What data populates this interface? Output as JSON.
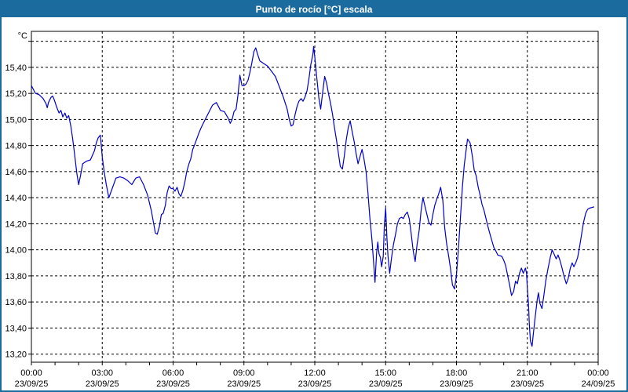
{
  "window": {
    "title": "Punto de rocío [°C] escala"
  },
  "colors": {
    "titlebar_bg": "#1C6B9F",
    "window_border": "#1B6C9E",
    "series_line": "#0000CC",
    "grid": "#000000",
    "frame": "#000000",
    "label_text": "#000000"
  },
  "chart_data": {
    "type": "line",
    "title": "Punto de rocío [°C] escala",
    "ylabel": "°C",
    "xlabel": "",
    "grid": true,
    "legend": "none",
    "xlim_hours": [
      0,
      24
    ],
    "ylim": [
      13.138,
      15.676
    ],
    "y_gridlines": [
      {
        "value": 15.6,
        "label": ""
      },
      {
        "value": 15.4,
        "label": "15,40"
      },
      {
        "value": 15.2,
        "label": "15,20"
      },
      {
        "value": 15.0,
        "label": "15,00"
      },
      {
        "value": 14.8,
        "label": "14,80"
      },
      {
        "value": 14.6,
        "label": "14,60"
      },
      {
        "value": 14.4,
        "label": "14,40"
      },
      {
        "value": 14.2,
        "label": "14,20"
      },
      {
        "value": 14.0,
        "label": "14,00"
      },
      {
        "value": 13.8,
        "label": "13,80"
      },
      {
        "value": 13.6,
        "label": "13,60"
      },
      {
        "value": 13.4,
        "label": "13,40"
      },
      {
        "value": 13.2,
        "label": "13,20"
      }
    ],
    "x_minor_tick_every_hours": 1,
    "x_ticks": [
      {
        "hour": 0,
        "time": "00:00",
        "date": "23/09/25"
      },
      {
        "hour": 3,
        "time": "03:00",
        "date": "23/09/25"
      },
      {
        "hour": 6,
        "time": "06:00",
        "date": "23/09/25"
      },
      {
        "hour": 9,
        "time": "09:00",
        "date": "23/09/25"
      },
      {
        "hour": 12,
        "time": "12:00",
        "date": "23/09/25"
      },
      {
        "hour": 15,
        "time": "15:00",
        "date": "23/09/25"
      },
      {
        "hour": 18,
        "time": "18:00",
        "date": "23/09/25"
      },
      {
        "hour": 21,
        "time": "21:00",
        "date": "23/09/25"
      },
      {
        "hour": 24,
        "time": "00:00",
        "date": "24/09/25"
      }
    ],
    "series": [
      {
        "name": "Punto de rocío [°C]",
        "points": [
          [
            0,
            15.26
          ],
          [
            0.17,
            15.2
          ],
          [
            0.33,
            15.19
          ],
          [
            0.5,
            15.16
          ],
          [
            0.62,
            15.12
          ],
          [
            0.67,
            15.09
          ],
          [
            0.72,
            15.13
          ],
          [
            0.83,
            15.17
          ],
          [
            0.9,
            15.18
          ],
          [
            0.97,
            15.15
          ],
          [
            1.08,
            15.09
          ],
          [
            1.17,
            15.05
          ],
          [
            1.25,
            15.07
          ],
          [
            1.33,
            15.02
          ],
          [
            1.42,
            15.05
          ],
          [
            1.5,
            15.01
          ],
          [
            1.58,
            15.03
          ],
          [
            1.67,
            14.95
          ],
          [
            1.75,
            14.85
          ],
          [
            1.83,
            14.73
          ],
          [
            1.92,
            14.59
          ],
          [
            2,
            14.5
          ],
          [
            2.08,
            14.57
          ],
          [
            2.17,
            14.66
          ],
          [
            2.33,
            14.68
          ],
          [
            2.5,
            14.69
          ],
          [
            2.67,
            14.76
          ],
          [
            2.75,
            14.82
          ],
          [
            2.83,
            14.86
          ],
          [
            2.92,
            14.88
          ],
          [
            3,
            14.71
          ],
          [
            3.08,
            14.6
          ],
          [
            3.17,
            14.5
          ],
          [
            3.28,
            14.4
          ],
          [
            3.42,
            14.47
          ],
          [
            3.58,
            14.55
          ],
          [
            3.75,
            14.56
          ],
          [
            3.92,
            14.55
          ],
          [
            4.08,
            14.53
          ],
          [
            4.25,
            14.5
          ],
          [
            4.42,
            14.55
          ],
          [
            4.58,
            14.56
          ],
          [
            4.75,
            14.5
          ],
          [
            4.92,
            14.42
          ],
          [
            5,
            14.36
          ],
          [
            5.08,
            14.3
          ],
          [
            5.17,
            14.21
          ],
          [
            5.25,
            14.13
          ],
          [
            5.33,
            14.12
          ],
          [
            5.42,
            14.18
          ],
          [
            5.5,
            14.27
          ],
          [
            5.58,
            14.28
          ],
          [
            5.67,
            14.34
          ],
          [
            5.75,
            14.44
          ],
          [
            5.83,
            14.49
          ],
          [
            5.92,
            14.47
          ],
          [
            6,
            14.47
          ],
          [
            6.08,
            14.45
          ],
          [
            6.17,
            14.48
          ],
          [
            6.25,
            14.43
          ],
          [
            6.33,
            14.41
          ],
          [
            6.42,
            14.46
          ],
          [
            6.5,
            14.52
          ],
          [
            6.58,
            14.6
          ],
          [
            6.67,
            14.66
          ],
          [
            6.75,
            14.7
          ],
          [
            6.83,
            14.77
          ],
          [
            6.92,
            14.81
          ],
          [
            7,
            14.85
          ],
          [
            7.08,
            14.89
          ],
          [
            7.17,
            14.93
          ],
          [
            7.33,
            14.99
          ],
          [
            7.5,
            15.05
          ],
          [
            7.67,
            15.11
          ],
          [
            7.83,
            15.13
          ],
          [
            7.92,
            15.1
          ],
          [
            8,
            15.07
          ],
          [
            8.17,
            15.06
          ],
          [
            8.33,
            15.01
          ],
          [
            8.42,
            14.97
          ],
          [
            8.5,
            15
          ],
          [
            8.58,
            15.06
          ],
          [
            8.67,
            15.08
          ],
          [
            8.75,
            15.19
          ],
          [
            8.83,
            15.34
          ],
          [
            8.92,
            15.26
          ],
          [
            9,
            15.26
          ],
          [
            9.08,
            15.27
          ],
          [
            9.17,
            15.3
          ],
          [
            9.25,
            15.36
          ],
          [
            9.33,
            15.43
          ],
          [
            9.42,
            15.52
          ],
          [
            9.5,
            15.55
          ],
          [
            9.58,
            15.5
          ],
          [
            9.67,
            15.45
          ],
          [
            9.83,
            15.43
          ],
          [
            10,
            15.41
          ],
          [
            10.17,
            15.37
          ],
          [
            10.33,
            15.33
          ],
          [
            10.5,
            15.25
          ],
          [
            10.67,
            15.17
          ],
          [
            10.83,
            15.08
          ],
          [
            10.92,
            15
          ],
          [
            11,
            14.95
          ],
          [
            11.08,
            14.96
          ],
          [
            11.17,
            15.04
          ],
          [
            11.25,
            15.1
          ],
          [
            11.33,
            15.14
          ],
          [
            11.42,
            15.16
          ],
          [
            11.5,
            15.14
          ],
          [
            11.58,
            15.17
          ],
          [
            11.67,
            15.22
          ],
          [
            11.75,
            15.31
          ],
          [
            11.83,
            15.42
          ],
          [
            11.92,
            15.5
          ],
          [
            11.95,
            15.56
          ],
          [
            12,
            15.48
          ],
          [
            12.08,
            15.33
          ],
          [
            12.17,
            15.17
          ],
          [
            12.25,
            15.08
          ],
          [
            12.33,
            15.2
          ],
          [
            12.42,
            15.33
          ],
          [
            12.5,
            15.28
          ],
          [
            12.58,
            15.2
          ],
          [
            12.67,
            15.12
          ],
          [
            12.75,
            15.04
          ],
          [
            12.83,
            14.94
          ],
          [
            12.92,
            14.84
          ],
          [
            13.08,
            14.64
          ],
          [
            13.17,
            14.62
          ],
          [
            13.25,
            14.72
          ],
          [
            13.33,
            14.84
          ],
          [
            13.42,
            14.94
          ],
          [
            13.5,
            14.99
          ],
          [
            13.58,
            14.91
          ],
          [
            13.67,
            14.83
          ],
          [
            13.75,
            14.74
          ],
          [
            13.83,
            14.66
          ],
          [
            13.92,
            14.72
          ],
          [
            14,
            14.77
          ],
          [
            14.08,
            14.7
          ],
          [
            14.17,
            14.6
          ],
          [
            14.25,
            14.44
          ],
          [
            14.33,
            14.25
          ],
          [
            14.42,
            14.08
          ],
          [
            14.5,
            13.88
          ],
          [
            14.55,
            13.75
          ],
          [
            14.62,
            13.98
          ],
          [
            14.67,
            14.06
          ],
          [
            14.72,
            13.97
          ],
          [
            14.78,
            13.94
          ],
          [
            14.83,
            13.87
          ],
          [
            14.9,
            13.95
          ],
          [
            14.95,
            14.2
          ],
          [
            15,
            14.32
          ],
          [
            15.05,
            14.1
          ],
          [
            15.1,
            13.95
          ],
          [
            15.17,
            13.82
          ],
          [
            15.25,
            13.94
          ],
          [
            15.33,
            14.04
          ],
          [
            15.42,
            14.12
          ],
          [
            15.5,
            14.2
          ],
          [
            15.58,
            14.24
          ],
          [
            15.67,
            14.25
          ],
          [
            15.75,
            14.24
          ],
          [
            15.83,
            14.27
          ],
          [
            15.92,
            14.29
          ],
          [
            16,
            14.24
          ],
          [
            16.08,
            14.13
          ],
          [
            16.17,
            13.99
          ],
          [
            16.25,
            13.91
          ],
          [
            16.33,
            14.04
          ],
          [
            16.42,
            14.15
          ],
          [
            16.5,
            14.3
          ],
          [
            16.58,
            14.4
          ],
          [
            16.67,
            14.33
          ],
          [
            16.75,
            14.27
          ],
          [
            16.83,
            14.21
          ],
          [
            16.92,
            14.19
          ],
          [
            17,
            14.27
          ],
          [
            17.08,
            14.34
          ],
          [
            17.17,
            14.39
          ],
          [
            17.25,
            14.43
          ],
          [
            17.33,
            14.48
          ],
          [
            17.42,
            14.38
          ],
          [
            17.5,
            14.17
          ],
          [
            17.58,
            14.05
          ],
          [
            17.67,
            13.95
          ],
          [
            17.75,
            13.85
          ],
          [
            17.83,
            13.73
          ],
          [
            17.92,
            13.7
          ],
          [
            18,
            13.81
          ],
          [
            18.08,
            14
          ],
          [
            18.17,
            14.25
          ],
          [
            18.25,
            14.48
          ],
          [
            18.33,
            14.65
          ],
          [
            18.42,
            14.78
          ],
          [
            18.47,
            14.85
          ],
          [
            18.58,
            14.82
          ],
          [
            18.67,
            14.72
          ],
          [
            18.75,
            14.61
          ],
          [
            18.83,
            14.57
          ],
          [
            18.92,
            14.48
          ],
          [
            19,
            14.42
          ],
          [
            19.08,
            14.35
          ],
          [
            19.17,
            14.3
          ],
          [
            19.25,
            14.24
          ],
          [
            19.33,
            14.18
          ],
          [
            19.42,
            14.12
          ],
          [
            19.5,
            14.07
          ],
          [
            19.58,
            14.02
          ],
          [
            19.67,
            13.99
          ],
          [
            19.75,
            13.96
          ],
          [
            19.92,
            13.95
          ],
          [
            20,
            13.92
          ],
          [
            20.08,
            13.88
          ],
          [
            20.17,
            13.8
          ],
          [
            20.25,
            13.73
          ],
          [
            20.33,
            13.65
          ],
          [
            20.42,
            13.68
          ],
          [
            20.5,
            13.76
          ],
          [
            20.58,
            13.74
          ],
          [
            20.67,
            13.82
          ],
          [
            20.75,
            13.86
          ],
          [
            20.83,
            13.82
          ],
          [
            20.92,
            13.86
          ],
          [
            20.97,
            13.82
          ],
          [
            21,
            13.7
          ],
          [
            21.05,
            13.58
          ],
          [
            21.08,
            13.44
          ],
          [
            21.13,
            13.3
          ],
          [
            21.2,
            13.26
          ],
          [
            21.25,
            13.35
          ],
          [
            21.33,
            13.48
          ],
          [
            21.42,
            13.62
          ],
          [
            21.47,
            13.67
          ],
          [
            21.53,
            13.59
          ],
          [
            21.62,
            13.55
          ],
          [
            21.7,
            13.65
          ],
          [
            21.78,
            13.76
          ],
          [
            21.87,
            13.85
          ],
          [
            21.97,
            13.94
          ],
          [
            22.05,
            14
          ],
          [
            22.13,
            13.97
          ],
          [
            22.22,
            13.93
          ],
          [
            22.3,
            13.96
          ],
          [
            22.38,
            13.92
          ],
          [
            22.47,
            13.86
          ],
          [
            22.55,
            13.8
          ],
          [
            22.65,
            13.74
          ],
          [
            22.73,
            13.78
          ],
          [
            22.82,
            13.86
          ],
          [
            22.9,
            13.9
          ],
          [
            22.97,
            13.87
          ],
          [
            23.05,
            13.9
          ],
          [
            23.13,
            13.94
          ],
          [
            23.22,
            14.03
          ],
          [
            23.3,
            14.12
          ],
          [
            23.38,
            14.21
          ],
          [
            23.47,
            14.28
          ],
          [
            23.55,
            14.31
          ],
          [
            23.63,
            14.32
          ],
          [
            23.83,
            14.33
          ]
        ]
      }
    ]
  }
}
